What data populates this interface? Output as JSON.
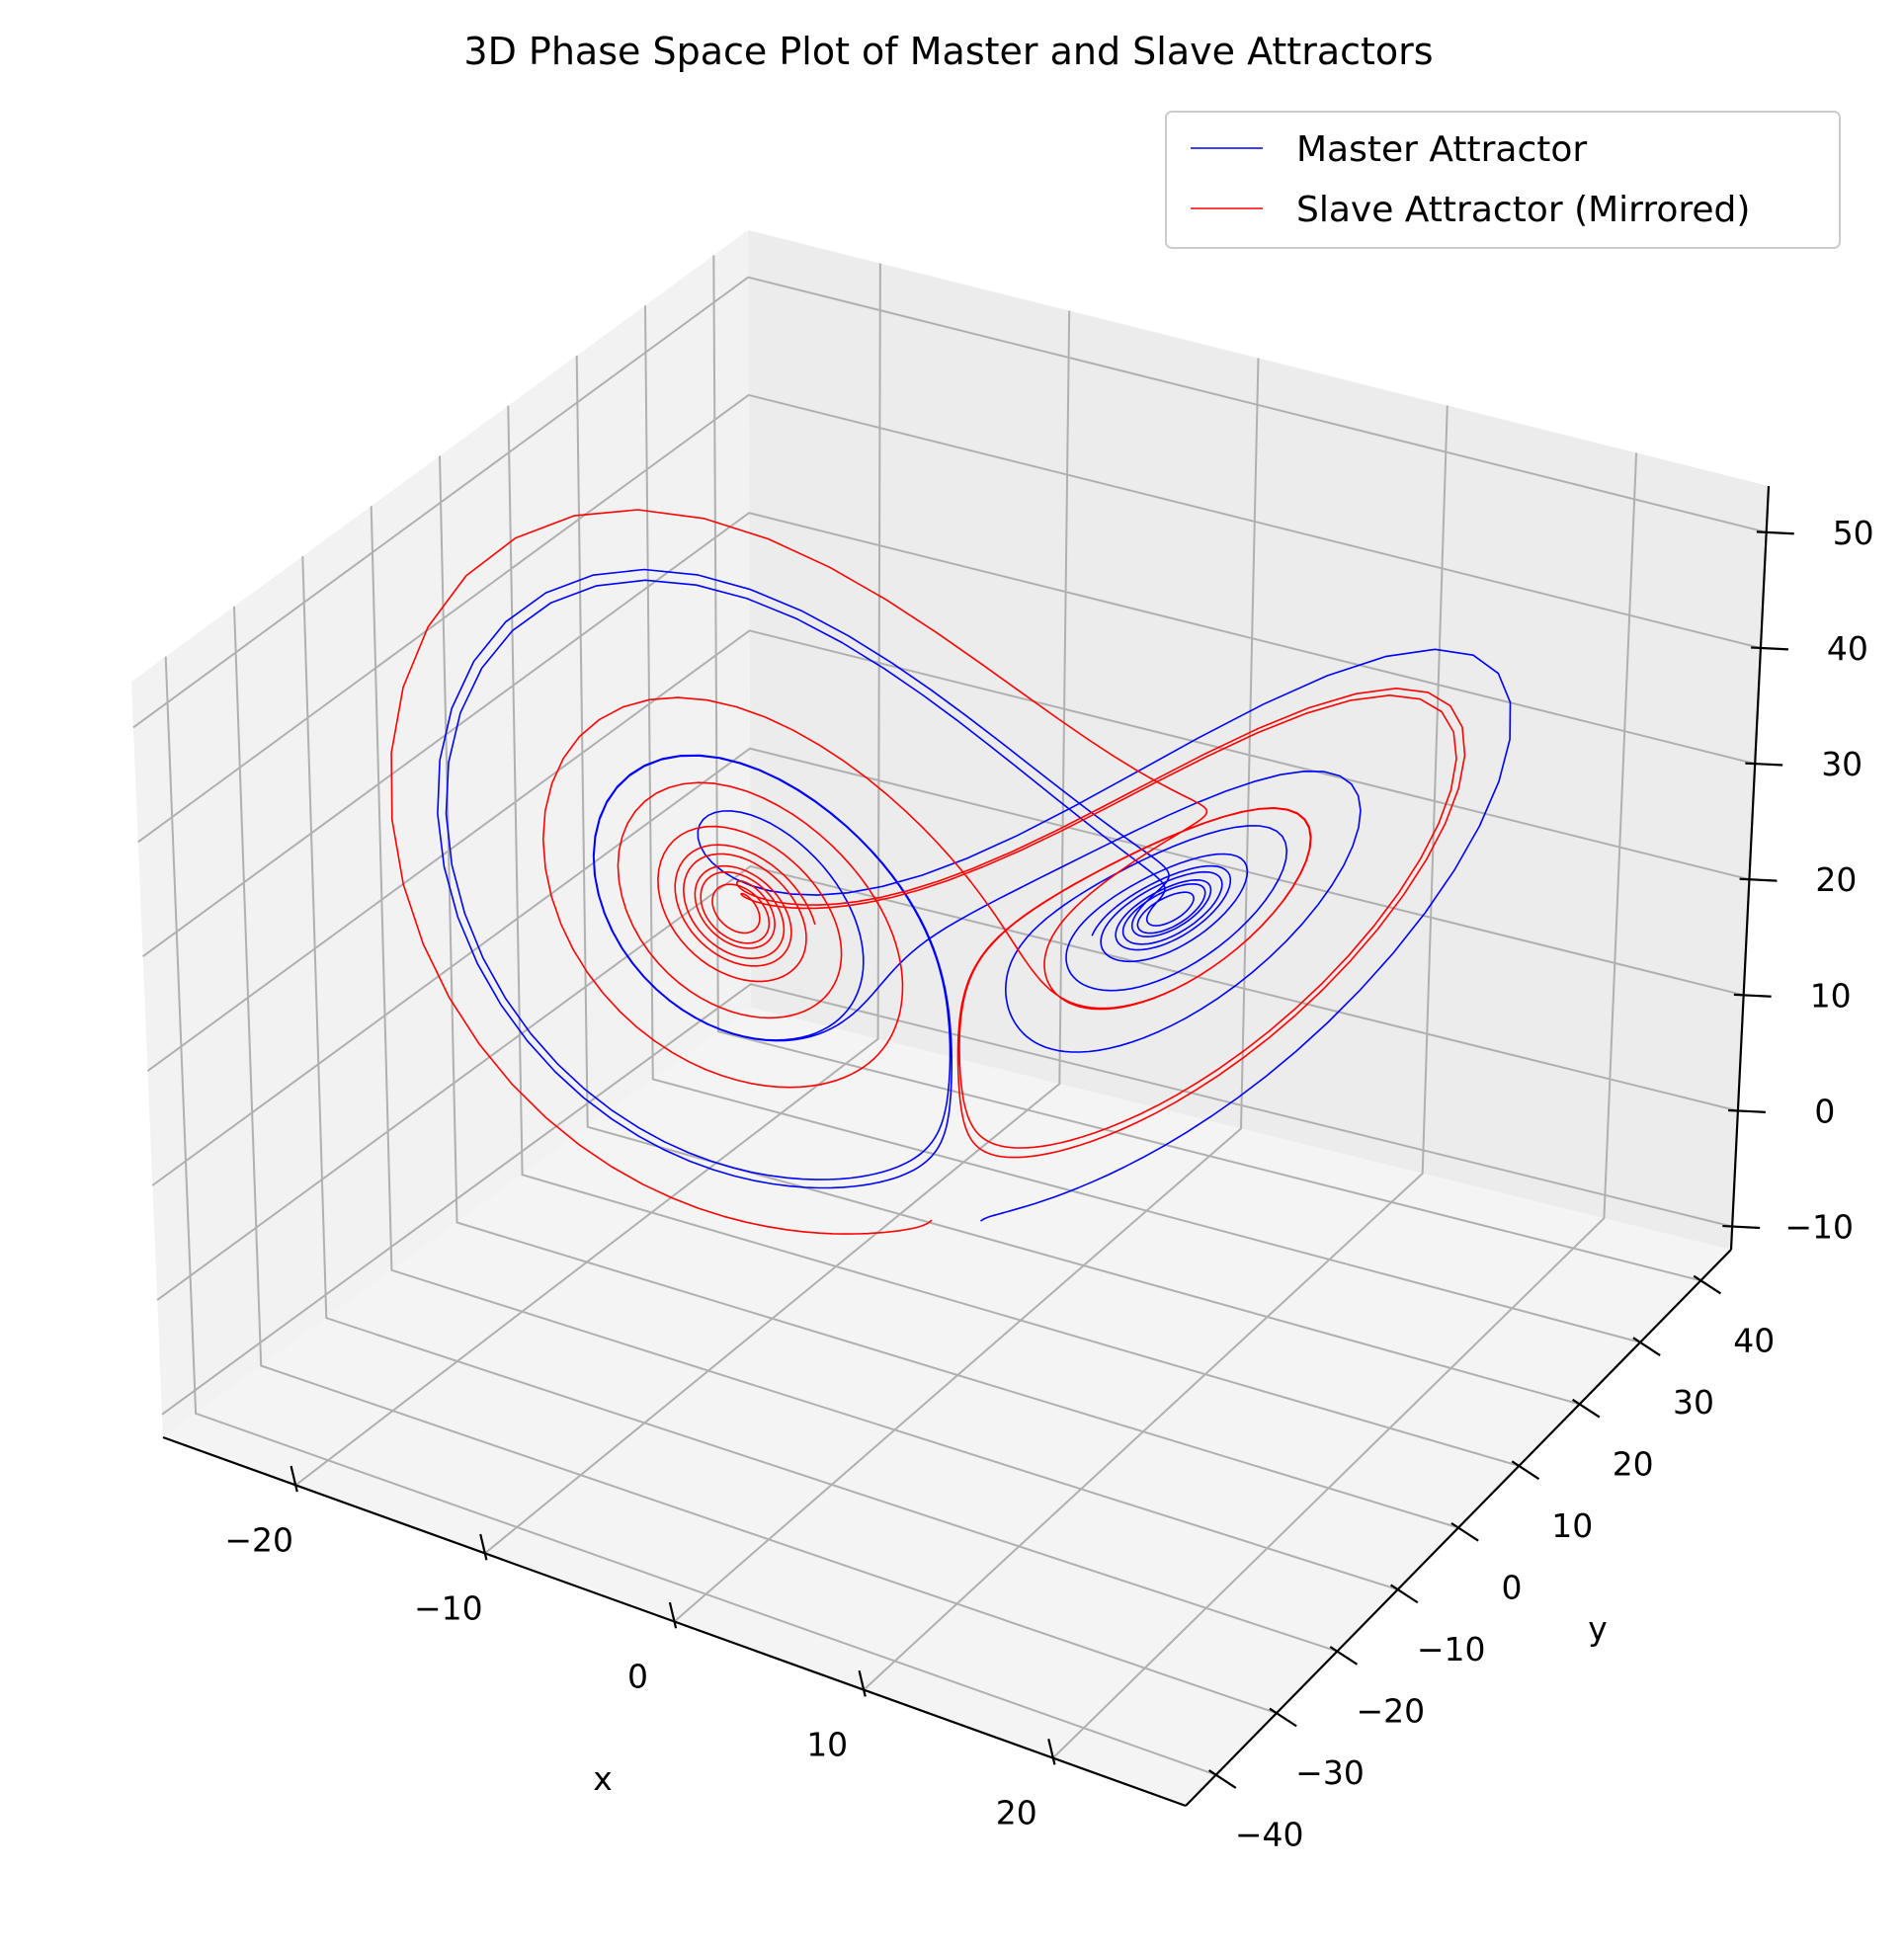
{
  "chart_data": {
    "type": "line",
    "projection": "3d",
    "title": "3D Phase Space Plot of Master and Slave Attractors",
    "xlabel": "x",
    "ylabel": "y",
    "zlabel": "",
    "xlim": [
      -27,
      27
    ],
    "ylim": [
      -45,
      45
    ],
    "zlim": [
      -12,
      54
    ],
    "x_ticks": [
      -20,
      -10,
      0,
      10,
      20
    ],
    "y_ticks": [
      -40,
      -30,
      -20,
      -10,
      0,
      10,
      20,
      30,
      40
    ],
    "z_ticks": [
      -10,
      0,
      10,
      20,
      30,
      40,
      50
    ],
    "x_tick_labels": [
      "−20",
      "−10",
      "0",
      "10",
      "20"
    ],
    "y_tick_labels": [
      "−40",
      "−30",
      "−20",
      "−10",
      "0",
      "10",
      "20",
      "30",
      "40"
    ],
    "z_tick_labels": [
      "−10",
      "0",
      "10",
      "20",
      "30",
      "40",
      "50"
    ],
    "grid": true,
    "legend_position": "top-right",
    "series": [
      {
        "name": "Master Attractor",
        "color": "#0000ff",
        "generator": "lorenz",
        "params": {
          "sigma": 10,
          "rho": 28,
          "beta": 2.6667
        },
        "initial": [
          1,
          1,
          1
        ],
        "x_sign": 1
      },
      {
        "name": "Slave Attractor (Mirrored)",
        "color": "#ff0000",
        "generator": "lorenz",
        "params": {
          "sigma": 10,
          "rho": 28,
          "beta": 2.6667
        },
        "initial": [
          1,
          1,
          1
        ],
        "x_sign": -1
      }
    ]
  }
}
